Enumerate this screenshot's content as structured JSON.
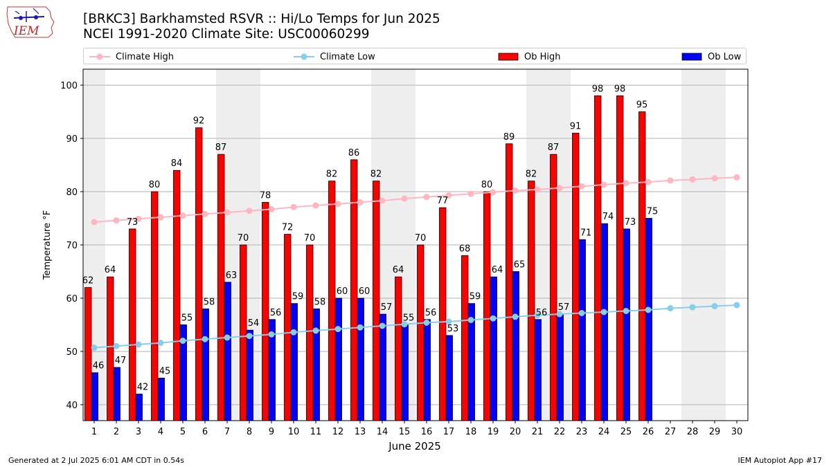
{
  "header": {
    "title": "[BRKC3] Barkhamsted RSVR :: Hi/Lo Temps for Jun 2025",
    "subtitle": "NCEI 1991-2020 Climate Site: USC00060299",
    "logo_text": "IEM"
  },
  "legend": {
    "climate_high": "Climate High",
    "climate_low": "Climate Low",
    "ob_high": "Ob High",
    "ob_low": "Ob Low"
  },
  "footer": {
    "generated": "Generated at 2 Jul 2025 6:01 AM CDT in 0.54s",
    "app": "IEM Autoplot App #17"
  },
  "colors": {
    "ob_high": "#ff0000",
    "ob_low": "#0000ff",
    "climate_high": "#ffb6c1",
    "climate_low": "#87ceeb",
    "weekend_band": "#eeeeee",
    "grid": "#b0b0b0"
  },
  "chart_data": {
    "type": "bar",
    "xlabel": "June 2025",
    "ylabel": "Temperature °F",
    "ylim": [
      37,
      103
    ],
    "yticks": [
      40,
      50,
      60,
      70,
      80,
      90,
      100
    ],
    "grid": "horizontal",
    "legend_position": "top",
    "weekend_days": [
      1,
      7,
      8,
      14,
      15,
      21,
      22,
      28,
      29
    ],
    "categories": [
      "1",
      "2",
      "3",
      "4",
      "5",
      "6",
      "7",
      "8",
      "9",
      "10",
      "11",
      "12",
      "13",
      "14",
      "15",
      "16",
      "17",
      "18",
      "19",
      "20",
      "21",
      "22",
      "23",
      "24",
      "25",
      "26",
      "27",
      "28",
      "29",
      "30"
    ],
    "series": [
      {
        "name": "Ob High",
        "kind": "bar",
        "values": [
          62,
          64,
          73,
          80,
          84,
          92,
          87,
          70,
          78,
          72,
          70,
          82,
          86,
          82,
          64,
          70,
          77,
          68,
          80,
          89,
          82,
          87,
          91,
          98,
          98,
          95,
          null,
          null,
          null,
          null
        ]
      },
      {
        "name": "Ob Low",
        "kind": "bar",
        "values": [
          46,
          47,
          42,
          45,
          55,
          58,
          63,
          54,
          56,
          59,
          58,
          60,
          60,
          57,
          55,
          56,
          53,
          59,
          64,
          65,
          56,
          57,
          71,
          74,
          73,
          75,
          null,
          null,
          null,
          null
        ]
      },
      {
        "name": "Climate High",
        "kind": "line",
        "values": [
          74.3,
          74.6,
          74.9,
          75.2,
          75.5,
          75.8,
          76.1,
          76.4,
          76.7,
          77.1,
          77.4,
          77.7,
          78.0,
          78.3,
          78.7,
          79.0,
          79.3,
          79.6,
          79.9,
          80.2,
          80.4,
          80.7,
          81.0,
          81.3,
          81.6,
          81.8,
          82.1,
          82.3,
          82.5,
          82.7
        ]
      },
      {
        "name": "Climate Low",
        "kind": "line",
        "values": [
          50.7,
          51.0,
          51.3,
          51.6,
          52.0,
          52.3,
          52.6,
          52.9,
          53.2,
          53.6,
          53.9,
          54.2,
          54.5,
          54.8,
          55.1,
          55.4,
          55.6,
          55.9,
          56.2,
          56.5,
          56.8,
          57.0,
          57.2,
          57.4,
          57.6,
          57.8,
          58.1,
          58.3,
          58.5,
          58.7
        ]
      }
    ]
  }
}
